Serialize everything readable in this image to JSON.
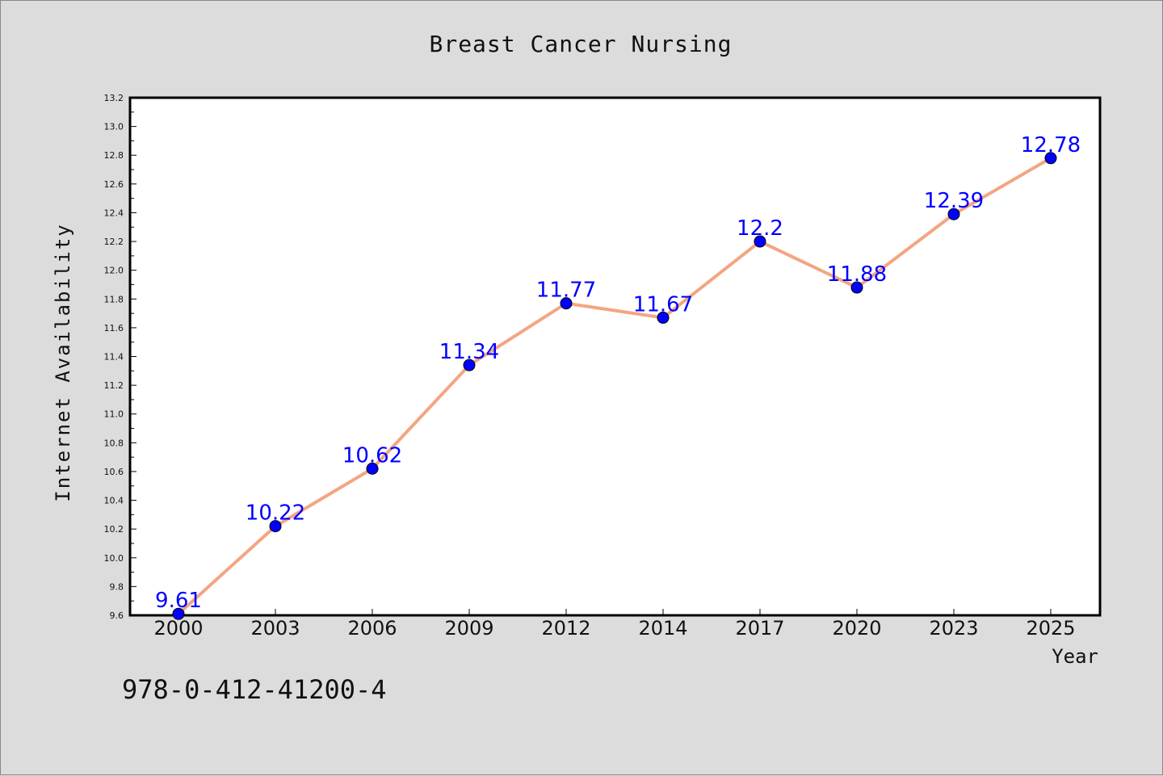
{
  "chart_data": {
    "type": "line",
    "title": "Breast Cancer Nursing",
    "xlabel": "Year",
    "ylabel": "Internet Availability",
    "categories": [
      "2000",
      "2003",
      "2006",
      "2009",
      "2012",
      "2014",
      "2017",
      "2020",
      "2023",
      "2025"
    ],
    "values": [
      9.61,
      10.22,
      10.62,
      11.34,
      11.77,
      11.67,
      12.2,
      11.88,
      12.39,
      12.78
    ],
    "data_labels": [
      "9.61",
      "10.22",
      "10.62",
      "11.34",
      "11.77",
      "11.67",
      "12.2",
      "11.88",
      "12.39",
      "12.78"
    ],
    "ylim": [
      9.6,
      13.2
    ],
    "yticks": [
      "9.6",
      "9.8",
      "10.0",
      "10.2",
      "10.4",
      "10.6",
      "10.8",
      "11.0",
      "11.2",
      "11.4",
      "11.6",
      "11.8",
      "12.0",
      "12.2",
      "12.4",
      "12.6",
      "12.8",
      "13.0",
      "13.2"
    ],
    "grid": false,
    "line_color": "#f4a582",
    "marker_color": "#0000ff",
    "label_color": "#0000ff"
  },
  "annotation": {
    "isbn": "978-0-412-41200-4"
  }
}
